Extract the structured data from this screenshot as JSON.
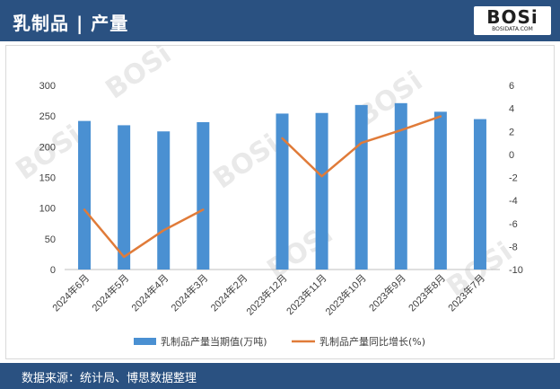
{
  "header": {
    "title": "乳制品 | 产量"
  },
  "logo": {
    "mark": "BOSi",
    "sub": "BOSIDATA.COM"
  },
  "footer": {
    "source": "数据来源：统计局、博思数据整理"
  },
  "colors": {
    "bar": "#4a90d2",
    "line": "#e07b39",
    "header": "#2a5181"
  },
  "chart_data": {
    "type": "bar",
    "categories": [
      "2024年6月",
      "2024年5月",
      "2024年4月",
      "2024年3月",
      "2024年2月",
      "2023年12月",
      "2023年11月",
      "2023年10月",
      "2023年9月",
      "2023年8月",
      "2023年7月"
    ],
    "series": [
      {
        "name": "乳制品产量当期值(万吨)",
        "type": "bar",
        "axis": "left",
        "values": [
          242,
          235,
          225,
          240,
          null,
          254,
          255,
          268,
          271,
          257,
          245
        ]
      },
      {
        "name": "乳制品产量同比增长(%)",
        "type": "line",
        "axis": "right",
        "values": [
          -4.8,
          -8.9,
          -6.6,
          -4.8,
          null,
          1.4,
          -1.9,
          1.0,
          2.1,
          3.3,
          null
        ]
      }
    ],
    "ylim": [
      0,
      300
    ],
    "yticks": [
      0,
      50,
      100,
      150,
      200,
      250,
      300
    ],
    "y2lim": [
      -10,
      6
    ],
    "y2ticks": [
      -10,
      -8,
      -6,
      -4,
      -2,
      0,
      2,
      4,
      6
    ],
    "legend": "bottom",
    "grid": false
  }
}
